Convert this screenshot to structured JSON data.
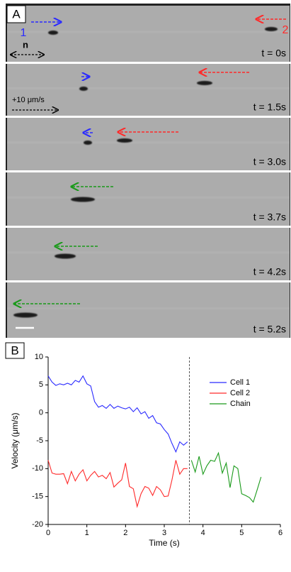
{
  "panel_a": {
    "label": "A",
    "strips": [
      {
        "time": "t = 0s",
        "cell_labels": [
          "1",
          "2"
        ],
        "axis_label": "n"
      },
      {
        "time": "t = 1.5s",
        "speed_label": "+10 μm/s"
      },
      {
        "time": "t = 3.0s"
      },
      {
        "time": "t = 3.7s"
      },
      {
        "time": "t = 4.2s"
      },
      {
        "time": "t = 5.2s"
      }
    ]
  },
  "panel_label": "B",
  "chart_data": {
    "type": "line",
    "xlabel": "Time (s)",
    "ylabel": "Velocity (μm/s)",
    "xlim": [
      0,
      6
    ],
    "ylim": [
      -20,
      10
    ],
    "xticks": [
      0,
      1,
      2,
      3,
      4,
      5,
      6
    ],
    "yticks": [
      -20,
      -15,
      -10,
      -5,
      0,
      5,
      10
    ],
    "vline": 3.65,
    "legend": "upper right",
    "series": [
      {
        "name": "Cell 1",
        "color": "#2a2aff",
        "x": [
          0,
          0.1,
          0.2,
          0.3,
          0.4,
          0.5,
          0.6,
          0.7,
          0.8,
          0.9,
          1.0,
          1.1,
          1.2,
          1.3,
          1.4,
          1.5,
          1.6,
          1.7,
          1.8,
          1.9,
          2.0,
          2.1,
          2.2,
          2.3,
          2.4,
          2.5,
          2.6,
          2.7,
          2.8,
          2.9,
          3.0,
          3.1,
          3.2,
          3.3,
          3.4,
          3.5,
          3.6
        ],
        "values": [
          6.6,
          5.5,
          4.9,
          5.2,
          5.0,
          5.3,
          5.0,
          5.8,
          5.5,
          6.6,
          5.2,
          4.8,
          2.0,
          1.0,
          1.3,
          0.8,
          1.5,
          0.8,
          1.2,
          0.9,
          0.7,
          1.0,
          0.2,
          0.9,
          -0.2,
          0.2,
          -1.0,
          -0.5,
          -1.8,
          -2.0,
          -3.0,
          -3.8,
          -5.5,
          -7.0,
          -5.2,
          -5.8,
          -5.2
        ]
      },
      {
        "name": "Cell 2",
        "color": "#ff2a2a",
        "x": [
          0,
          0.1,
          0.2,
          0.3,
          0.4,
          0.5,
          0.6,
          0.7,
          0.8,
          0.9,
          1.0,
          1.1,
          1.2,
          1.3,
          1.4,
          1.5,
          1.6,
          1.7,
          1.8,
          1.9,
          2.0,
          2.1,
          2.2,
          2.3,
          2.4,
          2.5,
          2.6,
          2.7,
          2.8,
          2.9,
          3.0,
          3.1,
          3.2,
          3.3,
          3.4,
          3.5,
          3.6
        ],
        "values": [
          -8.5,
          -10.8,
          -11.0,
          -11.0,
          -10.9,
          -12.7,
          -10.5,
          -12.2,
          -11.0,
          -10.2,
          -12.2,
          -11.2,
          -10.5,
          -11.5,
          -11.2,
          -11.8,
          -10.7,
          -13.3,
          -12.6,
          -12.0,
          -9.0,
          -13.2,
          -13.6,
          -16.8,
          -14.5,
          -13.2,
          -13.5,
          -14.8,
          -13.2,
          -13.8,
          -15.0,
          -14.9,
          -12.0,
          -8.5,
          -11.0,
          -10.0,
          -10.0
        ]
      },
      {
        "name": "Chain",
        "color": "#1a9a1a",
        "x": [
          3.7,
          3.8,
          3.9,
          4.0,
          4.1,
          4.2,
          4.3,
          4.4,
          4.5,
          4.6,
          4.7,
          4.8,
          4.9,
          5.0,
          5.1,
          5.2,
          5.3,
          5.4,
          5.5
        ],
        "values": [
          -8.5,
          -10.6,
          -7.8,
          -11.0,
          -9.5,
          -8.5,
          -8.7,
          -7.2,
          -10.8,
          -9.0,
          -13.4,
          -9.5,
          -10.0,
          -14.5,
          -14.8,
          -15.2,
          -16.0,
          -13.8,
          -11.5
        ]
      }
    ]
  }
}
